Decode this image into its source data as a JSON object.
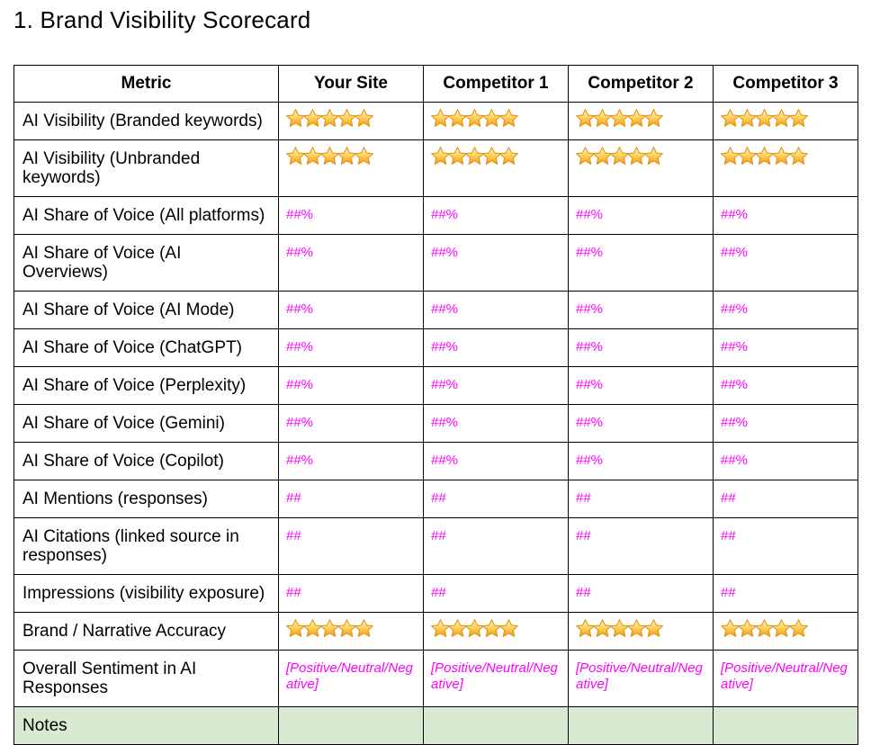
{
  "title": "1. Brand Visibility Scorecard",
  "colors": {
    "placeholder_text": "#ff00ff",
    "notes_row_bg": "#d9ead3",
    "table_border": "#000000",
    "star_top": "#fdf6c8",
    "star_mid": "#fcd568",
    "star_bottom": "#f29c0e",
    "star_outline": "#e09414"
  },
  "table": {
    "columns": [
      "Metric",
      "Your Site",
      "Competitor 1",
      "Competitor 2",
      "Competitor 3"
    ],
    "rows": [
      {
        "metric": "AI Visibility (Branded keywords)",
        "type": "stars",
        "values": [
          5,
          5,
          5,
          5
        ]
      },
      {
        "metric": "AI Visibility (Unbranded keywords)",
        "type": "stars",
        "values": [
          5,
          5,
          5,
          5
        ]
      },
      {
        "metric": "AI Share of Voice (All platforms)",
        "type": "placeholder",
        "values": [
          "##%",
          "##%",
          "##%",
          "##%"
        ]
      },
      {
        "metric": "AI Share of Voice (AI Overviews)",
        "type": "placeholder",
        "values": [
          "##%",
          "##%",
          "##%",
          "##%"
        ]
      },
      {
        "metric": "AI Share of Voice (AI Mode)",
        "type": "placeholder",
        "values": [
          "##%",
          "##%",
          "##%",
          "##%"
        ]
      },
      {
        "metric": "AI Share of Voice (ChatGPT)",
        "type": "placeholder",
        "values": [
          "##%",
          "##%",
          "##%",
          "##%"
        ]
      },
      {
        "metric": "AI Share of Voice (Perplexity)",
        "type": "placeholder",
        "values": [
          "##%",
          "##%",
          "##%",
          "##%"
        ]
      },
      {
        "metric": "AI Share of Voice (Gemini)",
        "type": "placeholder",
        "values": [
          "##%",
          "##%",
          "##%",
          "##%"
        ]
      },
      {
        "metric": "AI Share of Voice (Copilot)",
        "type": "placeholder",
        "values": [
          "##%",
          "##%",
          "##%",
          "##%"
        ]
      },
      {
        "metric": "AI Mentions (responses)",
        "type": "placeholder",
        "values": [
          "##",
          "##",
          "##",
          "##"
        ]
      },
      {
        "metric": "AI Citations (linked source in responses)",
        "type": "placeholder",
        "values": [
          "##",
          "##",
          "##",
          "##"
        ]
      },
      {
        "metric": "Impressions (visibility exposure)",
        "type": "placeholder",
        "values": [
          "##",
          "##",
          "##",
          "##"
        ]
      },
      {
        "metric": "Brand / Narrative Accuracy",
        "type": "stars",
        "values": [
          5,
          5,
          5,
          5
        ]
      },
      {
        "metric": "Overall Sentiment in AI Responses",
        "type": "placeholder-italic",
        "values": [
          "[Positive/Neutral/Negative]",
          "[Positive/Neutral/Negative]",
          "[Positive/Neutral/Negative]",
          "[Positive/Neutral/Negative]"
        ]
      },
      {
        "metric": "Notes",
        "type": "empty",
        "highlight": true,
        "values": [
          "",
          "",
          "",
          ""
        ]
      }
    ]
  }
}
